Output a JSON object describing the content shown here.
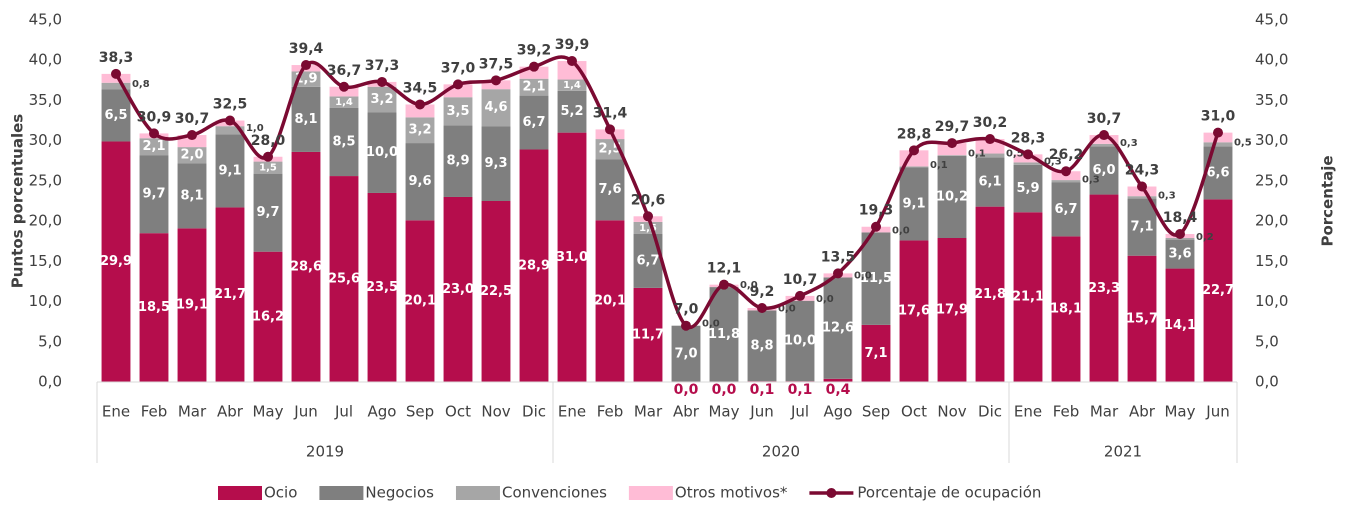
{
  "chart_data": {
    "type": "bar",
    "stacked": true,
    "y_label": "Puntos porcentuales",
    "y2_label": "Porcentaje",
    "categories": [
      "Ene",
      "Feb",
      "Mar",
      "Abr",
      "May",
      "Jun",
      "Jul",
      "Ago",
      "Sep",
      "Oct",
      "Nov",
      "Dic",
      "Ene",
      "Feb",
      "Mar",
      "Abr",
      "May",
      "Jun",
      "Jul",
      "Ago",
      "Sep",
      "Oct",
      "Nov",
      "Dic",
      "Ene",
      "Feb",
      "Mar",
      "Abr",
      "May",
      "Jun"
    ],
    "year_groups": [
      {
        "label": "2019",
        "months": 12
      },
      {
        "label": "2020",
        "months": 12
      },
      {
        "label": "2021",
        "months": 6
      }
    ],
    "series": [
      {
        "name": "Ocio",
        "color": "#b50d4c",
        "values": [
          29.9,
          18.5,
          19.1,
          21.7,
          16.2,
          28.6,
          25.6,
          23.5,
          20.1,
          23.0,
          22.5,
          28.9,
          31.0,
          20.1,
          11.7,
          0.0,
          0.0,
          0.1,
          0.1,
          0.4,
          7.1,
          17.6,
          17.9,
          21.8,
          21.1,
          18.1,
          23.3,
          15.7,
          14.1,
          22.7
        ],
        "value_labels": [
          "29,9",
          "18,5",
          "19,1",
          "21,7",
          "16,2",
          "28,6",
          "25,6",
          "23,5",
          "20,1",
          "23,0",
          "22,5",
          "28,9",
          "31,0",
          "20,1",
          "11,7",
          "0,0",
          "0,0",
          "0,1",
          "0,1",
          "0,4",
          "7,1",
          "17,6",
          "17,9",
          "21,8",
          "21,1",
          "18,1",
          "23,3",
          "15,7",
          "14,1",
          "22,7"
        ]
      },
      {
        "name": "Negocios",
        "color": "#7f7f7f",
        "values": [
          6.5,
          9.7,
          8.1,
          9.1,
          9.7,
          8.1,
          8.5,
          10.0,
          9.6,
          8.9,
          9.3,
          6.7,
          5.2,
          7.6,
          6.7,
          7.0,
          11.8,
          8.8,
          10.0,
          12.6,
          11.5,
          9.1,
          10.2,
          6.1,
          5.9,
          6.7,
          6.0,
          7.1,
          3.6,
          6.6
        ],
        "value_labels": [
          "6,5",
          "9,7",
          "8,1",
          "9,1",
          "9,7",
          "8,1",
          "8,5",
          "10,0",
          "9,6",
          "8,9",
          "9,3",
          "6,7",
          "5,2",
          "7,6",
          "6,7",
          "7,0",
          "11,8",
          "8,8",
          "10,0",
          "12,6",
          "11,5",
          "9,1",
          "10,2",
          "6,1",
          "5,9",
          "6,7",
          "6,0",
          "7,1",
          "3,6",
          "6,6"
        ]
      },
      {
        "name": "Convenciones",
        "color": "#a6a6a6",
        "values": [
          0.8,
          2.1,
          2.0,
          1.0,
          1.5,
          1.9,
          1.4,
          3.2,
          3.2,
          3.5,
          4.6,
          2.1,
          1.4,
          2.5,
          1.5,
          0.0,
          0.0,
          0.0,
          0.0,
          0.0,
          0.0,
          0.1,
          0.1,
          0.5,
          0.3,
          0.3,
          0.3,
          0.3,
          0.2,
          0.5
        ],
        "value_labels": [
          "0,8",
          "2,1",
          "2,0",
          "1,0",
          "1,5",
          "1,9",
          "1,4",
          "3,2",
          "3,2",
          "3,5",
          "4,6",
          "2,1",
          "1,4",
          "2,5",
          "1,5",
          "0,0",
          "0,0",
          "0,0",
          "0,0",
          "0,0",
          "0,0",
          "0,1",
          "0,1",
          "0,5",
          "0,3",
          "0,3",
          "0,3",
          "0,3",
          "0,2",
          "0,5"
        ]
      },
      {
        "name": "Otros motivos*",
        "color": "#ffbcd6",
        "values": [
          1.1,
          0.6,
          1.5,
          0.7,
          0.6,
          0.8,
          1.2,
          0.6,
          1.6,
          1.6,
          1.1,
          1.5,
          2.3,
          1.2,
          0.7,
          0.0,
          0.3,
          0.3,
          0.6,
          0.5,
          0.7,
          2.0,
          1.5,
          1.8,
          1.0,
          1.1,
          1.1,
          1.2,
          0.5,
          1.2
        ]
      },
      {
        "name": "Porcentaje de ocupación",
        "type": "line",
        "axis": "y2",
        "color": "#7b0a32",
        "values": [
          38.3,
          30.9,
          30.7,
          32.5,
          28.0,
          39.4,
          36.7,
          37.3,
          34.5,
          37.0,
          37.5,
          39.2,
          39.9,
          31.4,
          20.6,
          7.0,
          12.1,
          9.2,
          10.7,
          13.5,
          19.3,
          28.8,
          29.7,
          30.2,
          28.3,
          26.2,
          30.7,
          24.3,
          18.4,
          31.0
        ],
        "value_labels": [
          "38,3",
          "30,9",
          "30,7",
          "32,5",
          "28,0",
          "39,4",
          "36,7",
          "37,3",
          "34,5",
          "37,0",
          "37,5",
          "39,2",
          "39,9",
          "31,4",
          "20,6",
          "7,0",
          "12,1",
          "9,2",
          "10,7",
          "13,5",
          "19,3",
          "28,8",
          "29,7",
          "30,2",
          "28,3",
          "26,2",
          "30,7",
          "24,3",
          "18,4",
          "31,0"
        ]
      }
    ],
    "ylim": [
      0,
      45
    ],
    "yticks": [
      {
        "value": 0,
        "label": "0,0"
      },
      {
        "value": 5,
        "label": "5,0"
      },
      {
        "value": 10,
        "label": "10,0"
      },
      {
        "value": 15,
        "label": "15,0"
      },
      {
        "value": 20,
        "label": "20,0"
      },
      {
        "value": 25,
        "label": "25,0"
      },
      {
        "value": 30,
        "label": "30,0"
      },
      {
        "value": 35,
        "label": "35,0"
      },
      {
        "value": 40,
        "label": "40,0"
      },
      {
        "value": 45,
        "label": "45,0"
      }
    ],
    "y2lim": [
      0,
      45
    ],
    "y2ticks": [
      {
        "value": 0,
        "label": "0,0"
      },
      {
        "value": 5,
        "label": "5,0"
      },
      {
        "value": 10,
        "label": "10,0"
      },
      {
        "value": 15,
        "label": "15,0"
      },
      {
        "value": 20,
        "label": "20,0"
      },
      {
        "value": 25,
        "label": "25,0"
      },
      {
        "value": 30,
        "label": "30,0"
      },
      {
        "value": 35,
        "label": "35,0"
      },
      {
        "value": 40,
        "label": "40,0"
      },
      {
        "value": 45,
        "label": "45,0"
      }
    ],
    "legend": "bottom"
  }
}
